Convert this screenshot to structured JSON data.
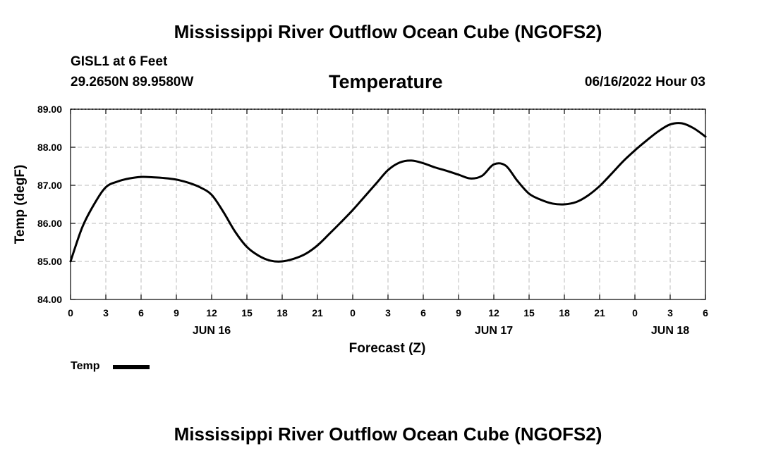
{
  "page": {
    "title_top": "Mississippi River Outflow Ocean Cube (NGOFS2)",
    "title_bottom": "Mississippi River Outflow Ocean Cube (NGOFS2)",
    "station": "GISL1 at 6 Feet",
    "coords": "29.2650N  89.9580W",
    "datetime": "06/16/2022 Hour 03"
  },
  "colors": {
    "line": "#000000",
    "grid": "#bbbbbb",
    "background": "#ffffff"
  },
  "chart_data": {
    "type": "line",
    "title": "Temperature",
    "xlabel": "Forecast (Z)",
    "ylabel": "Temp (degF)",
    "xlim": [
      0,
      54
    ],
    "ylim": [
      84.0,
      89.0
    ],
    "ytick_values": [
      84,
      85,
      86,
      87,
      88,
      89
    ],
    "yticks": [
      "84.00",
      "85.00",
      "86.00",
      "87.00",
      "88.00",
      "89.00"
    ],
    "xtick_values": [
      0,
      3,
      6,
      9,
      12,
      15,
      18,
      21,
      24,
      27,
      30,
      33,
      36,
      39,
      42,
      45,
      48,
      51,
      54
    ],
    "xticks": [
      "0",
      "3",
      "6",
      "9",
      "12",
      "15",
      "18",
      "21",
      "0",
      "3",
      "6",
      "9",
      "12",
      "15",
      "18",
      "21",
      "0",
      "3",
      "6"
    ],
    "day_labels": [
      {
        "x": 12,
        "label": "JUN 16"
      },
      {
        "x": 36,
        "label": "JUN 17"
      },
      {
        "x": 51,
        "label": "JUN 18"
      }
    ],
    "grid": true,
    "legend": {
      "label": "Temp",
      "position": "bottom-left"
    },
    "series": [
      {
        "name": "Temp",
        "x": [
          0,
          1,
          2,
          3,
          4,
          5,
          6,
          7,
          8,
          9,
          10,
          11,
          12,
          13,
          14,
          15,
          16,
          17,
          18,
          19,
          20,
          21,
          22,
          23,
          24,
          25,
          26,
          27,
          28,
          29,
          30,
          31,
          32,
          33,
          34,
          35,
          36,
          37,
          38,
          39,
          40,
          41,
          42,
          43,
          44,
          45,
          46,
          47,
          48,
          49,
          50,
          51,
          52,
          53,
          54
        ],
        "values": [
          85.0,
          85.9,
          86.5,
          86.95,
          87.1,
          87.18,
          87.22,
          87.21,
          87.19,
          87.15,
          87.07,
          86.95,
          86.75,
          86.3,
          85.78,
          85.38,
          85.15,
          85.02,
          85.0,
          85.07,
          85.2,
          85.42,
          85.72,
          86.03,
          86.35,
          86.7,
          87.05,
          87.4,
          87.6,
          87.65,
          87.58,
          87.47,
          87.38,
          87.28,
          87.18,
          87.25,
          87.55,
          87.52,
          87.12,
          86.78,
          86.62,
          86.52,
          86.5,
          86.56,
          86.73,
          86.98,
          87.3,
          87.63,
          87.92,
          88.18,
          88.42,
          88.6,
          88.63,
          88.5,
          88.28
        ]
      }
    ]
  }
}
